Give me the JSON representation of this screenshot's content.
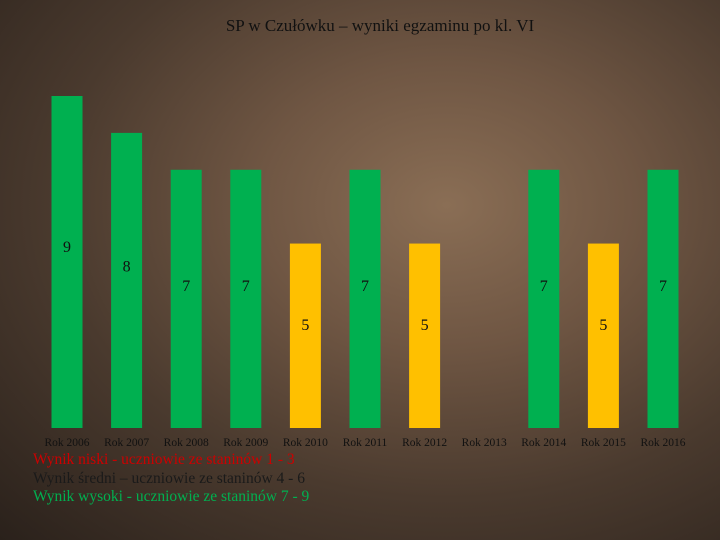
{
  "title": "SP w Czułówku – wyniki egzaminu po kl. VI",
  "colors": {
    "high": "#00b050",
    "medium": "#ffc000",
    "low": "#ff0000"
  },
  "legend": [
    {
      "text": "Wynik niski - uczniowie ze staninów 1 - 3",
      "color": "#cc0000"
    },
    {
      "text": "Wynik średni – uczniowie ze staninów 4 - 6",
      "color": "#1a1a1a"
    },
    {
      "text": "Wynik wysoki - uczniowie ze staninów 7 - 9",
      "color": "#00b050"
    }
  ],
  "chart_data": {
    "type": "bar",
    "categories": [
      "Rok 2006",
      "Rok 2007",
      "Rok 2008",
      "Rok 2009",
      "Rok 2010",
      "Rok 2011",
      "Rok 2012",
      "Rok 2013",
      "Rok 2014",
      "Rok 2015",
      "Rok 2016"
    ],
    "values": [
      9,
      8,
      7,
      7,
      5,
      7,
      5,
      null,
      7,
      5,
      7
    ],
    "bar_colors": [
      "high",
      "high",
      "high",
      "high",
      "medium",
      "high",
      "medium",
      null,
      "high",
      "medium",
      "high"
    ],
    "title": "SP w Czułówku – wyniki egzaminu po kl. VI",
    "xlabel": "",
    "ylabel": "",
    "ylim": [
      0,
      9
    ],
    "grid": false,
    "legend": "bottom-left"
  }
}
